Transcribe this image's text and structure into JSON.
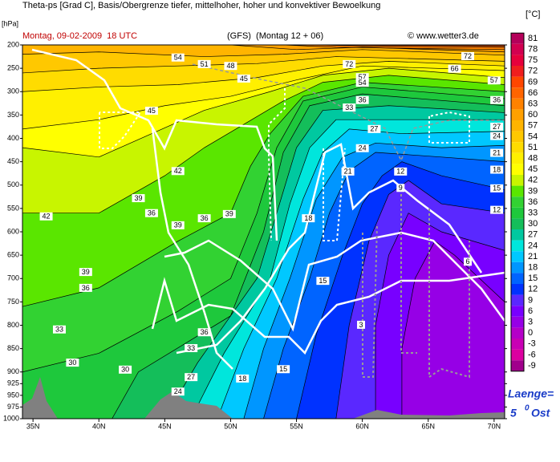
{
  "chart_data": {
    "type": "contour",
    "title": "Theta-ps [Grad C], Basis/Obergrenze tiefer, mittelhoher, hoher und konvektiver Bewoelkung",
    "subtitle": "Montag, 09-02-2009  18 UTC",
    "model_run": "(GFS)  (Montag 12 + 06)",
    "credit": "© www.wetter3.de",
    "y_label": "[hPa]",
    "colorbar_label": "[°C]",
    "annotation": {
      "text": "Laenge=",
      "value": 5,
      "sup": "0",
      "unit": "Ost"
    },
    "xlim": [
      34.2,
      70.8
    ],
    "xticks": [
      {
        "value": 35,
        "label": "35N"
      },
      {
        "value": 40,
        "label": "40N"
      },
      {
        "value": 45,
        "label": "45N"
      },
      {
        "value": 50,
        "label": "50N"
      },
      {
        "value": 55,
        "label": "55N"
      },
      {
        "value": 60,
        "label": "60N"
      },
      {
        "value": 65,
        "label": "65N"
      },
      {
        "value": 70,
        "label": "70N"
      }
    ],
    "ylim": [
      1000,
      200
    ],
    "yticks": [
      200,
      250,
      300,
      350,
      400,
      450,
      500,
      550,
      600,
      650,
      700,
      750,
      800,
      850,
      900,
      925,
      950,
      975,
      1000
    ],
    "colorbar": {
      "levels": [
        81,
        78,
        75,
        72,
        69,
        66,
        63,
        60,
        57,
        54,
        51,
        48,
        45,
        42,
        39,
        36,
        33,
        30,
        27,
        24,
        21,
        18,
        15,
        12,
        9,
        6,
        3,
        0,
        -3,
        -6,
        -9
      ],
      "colors": [
        "#b4005a",
        "#d20050",
        "#e6003c",
        "#f01e1e",
        "#ff4600",
        "#ff6400",
        "#ff8200",
        "#ffa000",
        "#ffb400",
        "#ffc800",
        "#ffdc00",
        "#fff000",
        "#ffff00",
        "#c8f500",
        "#5ae600",
        "#32d232",
        "#1ec83c",
        "#14be5a",
        "#00c8a0",
        "#00e6dc",
        "#00c8ff",
        "#0096ff",
        "#0064ff",
        "#0032ff",
        "#5a28ff",
        "#7800ff",
        "#9600e6",
        "#b400c8",
        "#c800b4",
        "#dc00a0",
        "#a0008c"
      ]
    },
    "contours": [
      {
        "level": 6,
        "x": [
          63,
          63,
          64,
          65.5,
          67,
          70.8
        ],
        "y": [
          1000,
          850,
          700,
          620,
          650,
          750
        ]
      },
      {
        "level": 9,
        "x": [
          61,
          61,
          62,
          63.5,
          66,
          70.8
        ],
        "y": [
          1000,
          800,
          650,
          560,
          600,
          640
        ]
      },
      {
        "level": 12,
        "x": [
          58,
          59,
          60.5,
          62,
          63.5,
          66,
          70.8
        ],
        "y": [
          1000,
          800,
          620,
          520,
          490,
          540,
          560
        ]
      },
      {
        "level": 15,
        "x": [
          55,
          56.5,
          58.5,
          60,
          61.5,
          63,
          66,
          70.8
        ],
        "y": [
          1000,
          820,
          650,
          540,
          480,
          450,
          480,
          510
        ]
      },
      {
        "level": 18,
        "x": [
          52.5,
          54,
          56,
          57.5,
          59,
          61,
          66,
          70.8
        ],
        "y": [
          1000,
          850,
          700,
          560,
          470,
          430,
          440,
          450
        ]
      },
      {
        "level": 21,
        "x": [
          51,
          52.5,
          54.5,
          56.5,
          58.5,
          61,
          66,
          70.8
        ],
        "y": [
          1000,
          850,
          700,
          530,
          440,
          410,
          420,
          415
        ]
      },
      {
        "level": 24,
        "x": [
          49,
          51,
          53.5,
          55.5,
          57,
          59,
          63,
          70.8
        ],
        "y": [
          1000,
          850,
          700,
          530,
          430,
          380,
          390,
          385
        ]
      },
      {
        "level": 27,
        "x": [
          47,
          49.5,
          53,
          54.5,
          56,
          58,
          63,
          70.8
        ],
        "y": [
          1000,
          860,
          700,
          540,
          420,
          360,
          360,
          360
        ]
      },
      {
        "level": 30,
        "x": [
          45,
          47.5,
          52,
          53.5,
          55,
          57,
          62,
          70.8
        ],
        "y": [
          1000,
          880,
          700,
          560,
          420,
          340,
          330,
          345
        ]
      },
      {
        "level": 33,
        "x": [
          41,
          43,
          50,
          52.5,
          54,
          56,
          60,
          70.8
        ],
        "y": [
          1000,
          900,
          780,
          600,
          430,
          330,
          305,
          330
        ]
      },
      {
        "level": 36,
        "x": [
          34.2,
          40,
          46,
          50,
          52,
          53.5,
          55.5,
          60,
          70.8
        ],
        "y": [
          900,
          860,
          770,
          700,
          560,
          420,
          320,
          290,
          315
        ]
      },
      {
        "level": 39,
        "x": [
          34.2,
          40,
          46,
          50,
          51.5,
          53,
          55.5,
          60,
          70.8
        ],
        "y": [
          760,
          720,
          620,
          560,
          460,
          390,
          310,
          280,
          300
        ]
      },
      {
        "level": 42,
        "x": [
          34.2,
          40,
          45,
          48,
          51,
          54,
          57,
          62,
          70.8
        ],
        "y": [
          560,
          560,
          480,
          420,
          370,
          320,
          280,
          265,
          285
        ]
      },
      {
        "level": 45,
        "x": [
          34.2,
          40,
          44,
          48,
          53,
          57,
          62,
          70.8
        ],
        "y": [
          420,
          440,
          390,
          340,
          300,
          265,
          250,
          270
        ]
      },
      {
        "level": 48,
        "x": [
          34.2,
          40,
          45,
          50,
          55,
          60,
          70.8
        ],
        "y": [
          380,
          360,
          330,
          310,
          275,
          245,
          255
        ]
      },
      {
        "level": 51,
        "x": [
          34.2,
          40,
          46,
          52,
          57,
          62,
          70.8
        ],
        "y": [
          300,
          290,
          285,
          270,
          245,
          235,
          245
        ]
      },
      {
        "level": 54,
        "x": [
          34.2,
          40,
          46,
          52,
          58,
          70.8
        ],
        "y": [
          260,
          250,
          245,
          240,
          225,
          235
        ]
      },
      {
        "level": 57,
        "x": [
          34.2,
          40,
          48,
          54,
          60,
          70.8
        ],
        "y": [
          220,
          215,
          225,
          220,
          210,
          222
        ]
      },
      {
        "level": 60,
        "x": [
          50,
          55,
          60,
          70.8
        ],
        "y": [
          200,
          210,
          205,
          215
        ]
      },
      {
        "level": 63,
        "x": [
          54,
          58,
          65,
          70.8
        ],
        "y": [
          200,
          205,
          208,
          210
        ]
      },
      {
        "level": 66,
        "x": [
          56,
          62,
          70.8
        ],
        "y": [
          200,
          203,
          205
        ]
      },
      {
        "level": 69,
        "x": [
          58,
          64,
          70.8
        ],
        "y": [
          200,
          201,
          202
        ]
      }
    ],
    "contour_labels": {
      "x": [
        36.0,
        39.0,
        39.0,
        43.0,
        44.0,
        46.0,
        44.0,
        46.0,
        48.0,
        49.9,
        37.0,
        38.0,
        42.0,
        47.0,
        46.0,
        47.0,
        48.0,
        50.9,
        54.0,
        55.9,
        57.0,
        58.9,
        60.0,
        60.9,
        59.0,
        60.0,
        62.9,
        62.9,
        68.0,
        59.9,
        70.2,
        70.2,
        70.2,
        70.2,
        70.2,
        70.2,
        70.2,
        46.0,
        48.0,
        50.0,
        51.0,
        59.0,
        60.0,
        60.0,
        67.0,
        68.0,
        70.0
      ],
      "y": [
        567,
        686,
        720,
        528,
        560,
        470,
        341,
        586,
        571,
        562,
        809,
        880,
        895,
        911,
        942,
        849,
        815,
        914,
        894,
        571,
        705,
        471,
        421,
        380,
        334,
        318,
        471,
        506,
        664,
        799,
        318,
        375,
        395,
        431,
        467,
        507,
        553,
        227,
        241,
        245,
        272,
        241,
        269,
        281,
        251,
        224,
        276
      ],
      "values": [
        42,
        39,
        36,
        39,
        36,
        42,
        45,
        39,
        36,
        39,
        33,
        30,
        30,
        27,
        24,
        33,
        36,
        18,
        15,
        18,
        15,
        21,
        24,
        27,
        33,
        36,
        12,
        9,
        6,
        3,
        36,
        27,
        24,
        21,
        18,
        15,
        12,
        54,
        51,
        48,
        45,
        72,
        57,
        54,
        66,
        72,
        57
      ]
    },
    "line_color": "#000000"
  }
}
